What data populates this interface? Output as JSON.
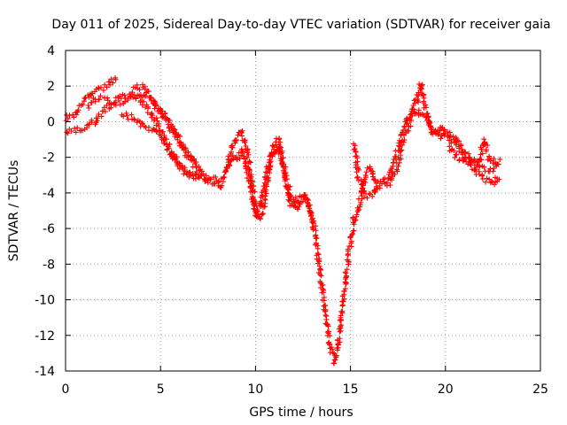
{
  "chart_data": {
    "type": "scatter",
    "title": "Day 011 of 2025, Sidereal Day-to-day VTEC variation (SDTVAR) for receiver gaia",
    "xlabel": "GPS time / hours",
    "ylabel": "SDTVAR / TECUs",
    "xlim": [
      0,
      25
    ],
    "ylim": [
      -14,
      4
    ],
    "xticks": [
      0,
      5,
      10,
      15,
      20,
      25
    ],
    "yticks": [
      4,
      2,
      0,
      -2,
      -4,
      -6,
      -8,
      -10,
      -12,
      -14
    ],
    "grid": true,
    "marker": "+",
    "color": "#ff0000",
    "series": [
      {
        "name": "satellite tracks",
        "curves": [
          [
            [
              0.0,
              0.2
            ],
            [
              0.5,
              0.4
            ],
            [
              1.0,
              1.2
            ],
            [
              1.5,
              1.8
            ],
            [
              2.0,
              1.9
            ],
            [
              2.5,
              2.3
            ],
            [
              2.8,
              2.3
            ]
          ],
          [
            [
              0.0,
              -0.6
            ],
            [
              0.5,
              -0.5
            ],
            [
              1.0,
              -0.4
            ],
            [
              1.5,
              0.0
            ],
            [
              2.0,
              0.6
            ],
            [
              2.5,
              1.0
            ],
            [
              3.0,
              1.1
            ],
            [
              3.5,
              1.4
            ],
            [
              4.0,
              1.4
            ],
            [
              4.5,
              1.2
            ],
            [
              5.0,
              0.6
            ],
            [
              5.5,
              0.0
            ],
            [
              6.0,
              -1.2
            ],
            [
              6.5,
              -2.0
            ],
            [
              7.0,
              -2.8
            ],
            [
              7.5,
              -3.1
            ],
            [
              8.0,
              -3.2
            ],
            [
              8.3,
              -3.5
            ]
          ],
          [
            [
              1.2,
              0.9
            ],
            [
              1.5,
              1.2
            ],
            [
              2.0,
              1.3
            ],
            [
              2.5,
              1.1
            ],
            [
              3.0,
              1.4
            ],
            [
              3.5,
              1.5
            ],
            [
              4.0,
              1.2
            ],
            [
              4.5,
              0.5
            ],
            [
              5.0,
              -0.5
            ],
            [
              5.5,
              -1.5
            ],
            [
              6.0,
              -2.5
            ],
            [
              6.5,
              -3.0
            ],
            [
              7.0,
              -3.1
            ],
            [
              7.5,
              -3.3
            ],
            [
              8.0,
              -3.4
            ],
            [
              8.3,
              -3.8
            ]
          ],
          [
            [
              3.0,
              0.4
            ],
            [
              3.5,
              0.2
            ],
            [
              3.8,
              0.0
            ],
            [
              4.0,
              -0.2
            ],
            [
              4.5,
              -0.4
            ],
            [
              5.0,
              -0.8
            ],
            [
              5.5,
              -1.8
            ],
            [
              6.0,
              -2.5
            ],
            [
              6.5,
              -3.0
            ],
            [
              7.0,
              -3.1
            ],
            [
              7.5,
              -3.2
            ]
          ],
          [
            [
              3.6,
              1.8
            ],
            [
              4.0,
              2.0
            ],
            [
              4.5,
              1.5
            ],
            [
              5.0,
              0.5
            ],
            [
              5.5,
              -0.3
            ],
            [
              6.0,
              -1.0
            ],
            [
              6.5,
              -1.8
            ],
            [
              7.0,
              -2.5
            ]
          ],
          [
            [
              8.3,
              -3.2
            ],
            [
              8.6,
              -2.0
            ],
            [
              8.8,
              -1.4
            ],
            [
              9.0,
              -1.0
            ],
            [
              9.2,
              -0.6
            ],
            [
              9.4,
              -1.0
            ],
            [
              9.6,
              -1.8
            ],
            [
              9.8,
              -3.5
            ],
            [
              10.0,
              -4.8
            ],
            [
              10.2,
              -5.5
            ],
            [
              10.4,
              -5.0
            ],
            [
              10.6,
              -3.5
            ],
            [
              10.8,
              -2.0
            ],
            [
              11.0,
              -1.2
            ],
            [
              11.2,
              -1.0
            ],
            [
              11.5,
              -2.5
            ],
            [
              11.8,
              -4.0
            ],
            [
              12.0,
              -4.6
            ]
          ],
          [
            [
              8.5,
              -2.6
            ],
            [
              8.8,
              -2.0
            ],
            [
              9.0,
              -2.2
            ],
            [
              9.3,
              -1.6
            ],
            [
              9.5,
              -2.5
            ],
            [
              9.8,
              -4.0
            ],
            [
              10.0,
              -5.2
            ],
            [
              10.3,
              -4.5
            ],
            [
              10.6,
              -2.8
            ],
            [
              10.9,
              -1.8
            ],
            [
              11.2,
              -1.4
            ],
            [
              11.5,
              -3.0
            ],
            [
              11.8,
              -4.5
            ],
            [
              12.2,
              -5.0
            ],
            [
              12.5,
              -4.2
            ],
            [
              12.8,
              -4.6
            ],
            [
              13.0,
              -5.6
            ]
          ],
          [
            [
              12.0,
              -4.6
            ],
            [
              12.5,
              -4.0
            ],
            [
              12.8,
              -4.5
            ],
            [
              13.1,
              -6.0
            ],
            [
              13.4,
              -8.5
            ],
            [
              13.7,
              -11.0
            ],
            [
              14.0,
              -13.0
            ],
            [
              14.2,
              -13.5
            ],
            [
              14.4,
              -12.0
            ],
            [
              14.6,
              -10.0
            ],
            [
              14.9,
              -7.5
            ],
            [
              15.2,
              -5.5
            ],
            [
              15.5,
              -4.5
            ],
            [
              15.8,
              -3.0
            ],
            [
              16.0,
              -2.5
            ],
            [
              16.3,
              -3.5
            ],
            [
              16.6,
              -3.5
            ],
            [
              17.0,
              -3.2
            ],
            [
              17.3,
              -2.3
            ],
            [
              17.6,
              -1.2
            ],
            [
              17.9,
              -0.1
            ],
            [
              18.2,
              0.5
            ],
            [
              18.5,
              1.2
            ],
            [
              18.7,
              2.2
            ],
            [
              18.9,
              1.0
            ],
            [
              19.2,
              -0.5
            ],
            [
              19.5,
              -0.6
            ],
            [
              19.8,
              -0.3
            ],
            [
              20.0,
              -0.6
            ],
            [
              20.5,
              -1.0
            ],
            [
              21.0,
              -1.6
            ],
            [
              21.5,
              -2.3
            ],
            [
              22.0,
              -2.6
            ],
            [
              22.5,
              -2.7
            ],
            [
              22.8,
              -2.4
            ]
          ],
          [
            [
              15.2,
              -1.2
            ],
            [
              15.4,
              -3.0
            ],
            [
              15.8,
              -4.2
            ],
            [
              16.2,
              -4.0
            ],
            [
              16.6,
              -3.5
            ],
            [
              17.0,
              -3.5
            ],
            [
              17.4,
              -2.8
            ],
            [
              17.8,
              -1.0
            ],
            [
              18.2,
              0.2
            ],
            [
              18.6,
              0.6
            ],
            [
              19.0,
              0.2
            ],
            [
              19.3,
              -0.4
            ],
            [
              19.7,
              -0.9
            ],
            [
              20.0,
              -0.8
            ],
            [
              20.5,
              -1.2
            ],
            [
              21.0,
              -2.0
            ],
            [
              21.5,
              -2.6
            ],
            [
              22.0,
              -3.2
            ],
            [
              22.5,
              -3.5
            ],
            [
              22.9,
              -3.0
            ]
          ],
          [
            [
              20.2,
              -1.5
            ],
            [
              20.6,
              -2.0
            ],
            [
              21.0,
              -2.3
            ],
            [
              21.4,
              -2.2
            ],
            [
              21.8,
              -2.4
            ],
            [
              22.0,
              -1.0
            ],
            [
              22.3,
              -2.0
            ],
            [
              22.6,
              -2.3
            ],
            [
              22.9,
              -2.2
            ]
          ]
        ]
      }
    ]
  }
}
